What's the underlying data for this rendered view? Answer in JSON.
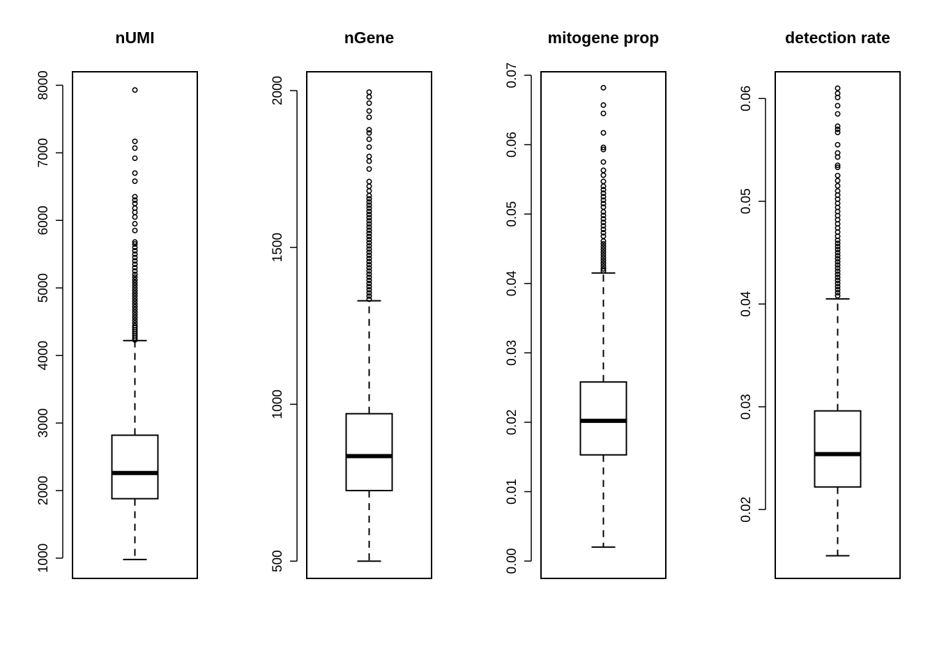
{
  "chart_data": [
    {
      "type": "box",
      "title": "nUMI",
      "ylim": [
        700,
        8200
      ],
      "yticks": [
        1000,
        2000,
        3000,
        4000,
        5000,
        6000,
        7000,
        8000
      ],
      "ytick_labels": [
        "1000",
        "2000",
        "3000",
        "4000",
        "5000",
        "6000",
        "7000",
        "8000"
      ],
      "box": {
        "whisker_low": 980,
        "q1": 1880,
        "median": 2260,
        "q3": 2820,
        "whisker_high": 4220
      },
      "outliers": [
        4230,
        4260,
        4290,
        4320,
        4350,
        4380,
        4410,
        4440,
        4480,
        4520,
        4560,
        4600,
        4640,
        4680,
        4720,
        4760,
        4800,
        4840,
        4880,
        4920,
        4960,
        5000,
        5040,
        5080,
        5120,
        5160,
        5200,
        5250,
        5300,
        5350,
        5400,
        5450,
        5500,
        5550,
        5600,
        5650,
        5680,
        5850,
        5950,
        6050,
        6120,
        6180,
        6250,
        6300,
        6350,
        6580,
        6700,
        6920,
        7070,
        7170,
        7930
      ]
    },
    {
      "type": "box",
      "title": "nGene",
      "ylim": [
        445,
        2060
      ],
      "yticks": [
        500,
        1000,
        1500,
        2000
      ],
      "ytick_labels": [
        "500",
        "1000",
        "1500",
        "2000"
      ],
      "box": {
        "whisker_low": 500,
        "q1": 725,
        "median": 835,
        "q3": 970,
        "whisker_high": 1330
      },
      "outliers": [
        1335,
        1345,
        1355,
        1365,
        1375,
        1385,
        1395,
        1405,
        1415,
        1425,
        1435,
        1445,
        1455,
        1465,
        1475,
        1485,
        1495,
        1505,
        1515,
        1525,
        1535,
        1545,
        1555,
        1565,
        1575,
        1585,
        1595,
        1605,
        1615,
        1625,
        1635,
        1645,
        1655,
        1665,
        1680,
        1695,
        1710,
        1750,
        1775,
        1790,
        1820,
        1845,
        1865,
        1875,
        1915,
        1935,
        1960,
        1980,
        1995
      ]
    },
    {
      "type": "box",
      "title": "mitogene prop",
      "ylim": [
        -0.0025,
        0.0705
      ],
      "yticks": [
        0.0,
        0.01,
        0.02,
        0.03,
        0.04,
        0.05,
        0.06,
        0.07
      ],
      "ytick_labels": [
        "0.00",
        "0.01",
        "0.02",
        "0.03",
        "0.04",
        "0.05",
        "0.06",
        "0.07"
      ],
      "box": {
        "whisker_low": 0.002,
        "q1": 0.0153,
        "median": 0.0202,
        "q3": 0.0258,
        "whisker_high": 0.0415
      },
      "outliers": [
        0.0418,
        0.0421,
        0.0425,
        0.0429,
        0.0433,
        0.0437,
        0.0441,
        0.0445,
        0.0449,
        0.0453,
        0.0457,
        0.0461,
        0.0468,
        0.0473,
        0.0478,
        0.0483,
        0.0488,
        0.0493,
        0.0498,
        0.0503,
        0.051,
        0.0515,
        0.052,
        0.0525,
        0.053,
        0.0535,
        0.054,
        0.0547,
        0.0556,
        0.0563,
        0.0575,
        0.0593,
        0.0596,
        0.0617,
        0.0645,
        0.0657,
        0.0682
      ]
    },
    {
      "type": "box",
      "title": "detection rate",
      "ylim": [
        0.0133,
        0.0626
      ],
      "yticks": [
        0.02,
        0.03,
        0.04,
        0.05,
        0.06
      ],
      "ytick_labels": [
        "0.02",
        "0.03",
        "0.04",
        "0.05",
        "0.06"
      ],
      "box": {
        "whisker_low": 0.0155,
        "q1": 0.0222,
        "median": 0.0254,
        "q3": 0.0296,
        "whisker_high": 0.0405
      },
      "outliers": [
        0.0408,
        0.0411,
        0.0414,
        0.0417,
        0.042,
        0.0423,
        0.0426,
        0.0429,
        0.0432,
        0.0435,
        0.0438,
        0.0441,
        0.0444,
        0.0447,
        0.045,
        0.0453,
        0.0456,
        0.0459,
        0.0462,
        0.0466,
        0.047,
        0.0474,
        0.0478,
        0.0482,
        0.0486,
        0.049,
        0.0494,
        0.0498,
        0.0502,
        0.0506,
        0.051,
        0.0515,
        0.052,
        0.0525,
        0.0533,
        0.0535,
        0.0543,
        0.0547,
        0.0555,
        0.0567,
        0.057,
        0.0573,
        0.0585,
        0.0593,
        0.0601,
        0.0605,
        0.061
      ]
    }
  ]
}
